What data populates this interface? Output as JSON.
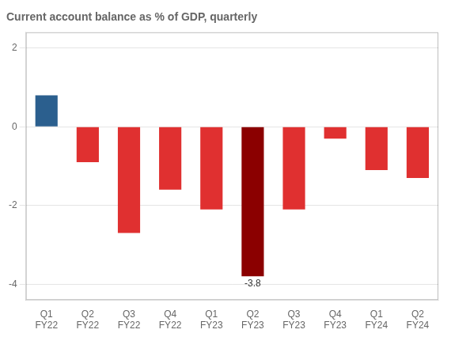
{
  "chart_data": {
    "type": "bar",
    "title": "Current account balance as % of GDP, quarterly",
    "categories": [
      "Q1\nFY22",
      "Q2\nFY22",
      "Q3\nFY22",
      "Q4\nFY22",
      "Q1\nFY23",
      "Q2\nFY23",
      "Q3\nFY23",
      "Q4\nFY23",
      "Q1\nFY24",
      "Q2\nFY24"
    ],
    "values": [
      0.8,
      -0.9,
      -2.7,
      -1.6,
      -2.1,
      -3.8,
      -2.1,
      -0.3,
      -1.1,
      -1.3
    ],
    "colors": [
      "#2b5f8e",
      "#e03030",
      "#e03030",
      "#e03030",
      "#e03030",
      "#8b0000",
      "#e03030",
      "#e03030",
      "#e03030",
      "#e03030"
    ],
    "ylim": [
      -4.4,
      2.4
    ],
    "yticks": [
      -4,
      -2,
      0,
      2
    ],
    "grid": true,
    "annotations": [
      {
        "x": "Q2\nFY23",
        "y": -3.8,
        "text": "-3.8"
      }
    ]
  }
}
